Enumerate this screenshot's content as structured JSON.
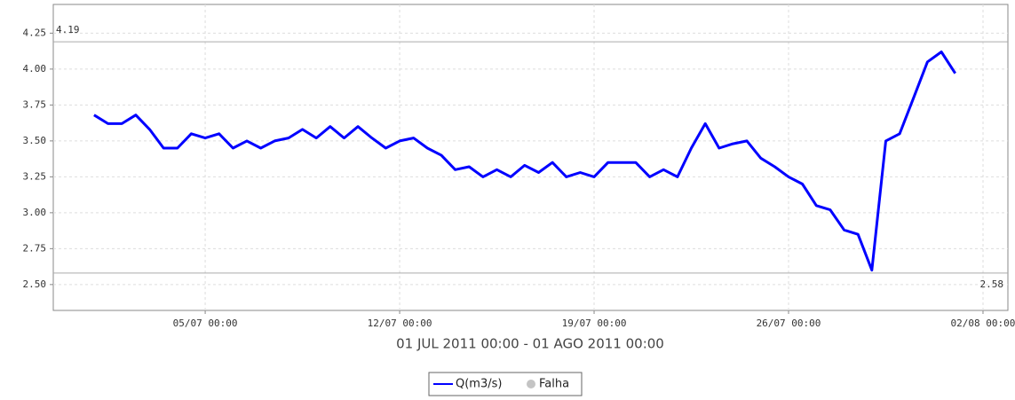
{
  "chart_data": {
    "type": "line",
    "subtitle": "01 JUL 2011 00:00 - 01 AGO 2011 00:00",
    "x": [
      "2011-07-01T00:00",
      "2011-07-01T12:00",
      "2011-07-02T00:00",
      "2011-07-02T12:00",
      "2011-07-03T00:00",
      "2011-07-03T12:00",
      "2011-07-04T00:00",
      "2011-07-04T12:00",
      "2011-07-05T00:00",
      "2011-07-05T12:00",
      "2011-07-06T00:00",
      "2011-07-06T12:00",
      "2011-07-07T00:00",
      "2011-07-07T12:00",
      "2011-07-08T00:00",
      "2011-07-08T12:00",
      "2011-07-09T00:00",
      "2011-07-09T12:00",
      "2011-07-10T00:00",
      "2011-07-10T12:00",
      "2011-07-11T00:00",
      "2011-07-11T12:00",
      "2011-07-12T00:00",
      "2011-07-12T12:00",
      "2011-07-13T00:00",
      "2011-07-13T12:00",
      "2011-07-14T00:00",
      "2011-07-14T12:00",
      "2011-07-15T00:00",
      "2011-07-15T12:00",
      "2011-07-16T00:00",
      "2011-07-16T12:00",
      "2011-07-17T00:00",
      "2011-07-17T12:00",
      "2011-07-18T00:00",
      "2011-07-18T12:00",
      "2011-07-19T00:00",
      "2011-07-19T12:00",
      "2011-07-20T00:00",
      "2011-07-20T12:00",
      "2011-07-21T00:00",
      "2011-07-21T12:00",
      "2011-07-22T00:00",
      "2011-07-22T12:00",
      "2011-07-23T00:00",
      "2011-07-23T12:00",
      "2011-07-24T00:00",
      "2011-07-24T12:00",
      "2011-07-25T00:00",
      "2011-07-25T12:00",
      "2011-07-26T00:00",
      "2011-07-26T12:00",
      "2011-07-27T00:00",
      "2011-07-27T12:00",
      "2011-07-28T00:00",
      "2011-07-28T12:00",
      "2011-07-29T00:00",
      "2011-07-29T12:00",
      "2011-07-30T00:00",
      "2011-07-30T12:00",
      "2011-07-31T00:00",
      "2011-07-31T12:00",
      "2011-08-01T00:00"
    ],
    "series": [
      {
        "name": "Q(m3/s)",
        "color": "#0000ff",
        "values": [
          3.68,
          3.62,
          3.62,
          3.68,
          3.58,
          3.45,
          3.45,
          3.55,
          3.52,
          3.55,
          3.45,
          3.5,
          3.45,
          3.5,
          3.52,
          3.58,
          3.52,
          3.6,
          3.52,
          3.6,
          3.52,
          3.45,
          3.5,
          3.52,
          3.45,
          3.4,
          3.3,
          3.32,
          3.25,
          3.3,
          3.25,
          3.33,
          3.28,
          3.35,
          3.25,
          3.28,
          3.25,
          3.35,
          3.35,
          3.35,
          3.25,
          3.3,
          3.25,
          3.45,
          3.62,
          3.45,
          3.48,
          3.5,
          3.38,
          3.32,
          3.25,
          3.2,
          3.05,
          3.02,
          2.88,
          2.85,
          2.6,
          3.5,
          3.55,
          3.8,
          4.05,
          4.12,
          3.97
        ]
      }
    ],
    "extra_legend": {
      "name": "Falha",
      "color": "#c4c4c4"
    },
    "markers": [
      4.19,
      2.58
    ],
    "xlim": [
      "2011-06-29T12:45",
      "2011-08-02T21:30"
    ],
    "xticks": [
      {
        "value": "2011-07-05T00:00",
        "label": "05/07 00:00"
      },
      {
        "value": "2011-07-12T00:00",
        "label": "12/07 00:00"
      },
      {
        "value": "2011-07-19T00:00",
        "label": "19/07 00:00"
      },
      {
        "value": "2011-07-26T00:00",
        "label": "26/07 00:00"
      },
      {
        "value": "2011-08-02T00:00",
        "label": "02/08 00:00"
      }
    ],
    "ylim": [
      2.32,
      4.45
    ],
    "yticks": [
      {
        "value": 2.5,
        "label": "2.50"
      },
      {
        "value": 2.75,
        "label": "2.75"
      },
      {
        "value": 3,
        "label": "3.00"
      },
      {
        "value": 3.25,
        "label": "3.25"
      },
      {
        "value": 3.5,
        "label": "3.50"
      },
      {
        "value": 3.75,
        "label": "3.75"
      },
      {
        "value": 4,
        "label": "4.00"
      },
      {
        "value": 4.25,
        "label": "4.25"
      }
    ],
    "grid": true
  }
}
